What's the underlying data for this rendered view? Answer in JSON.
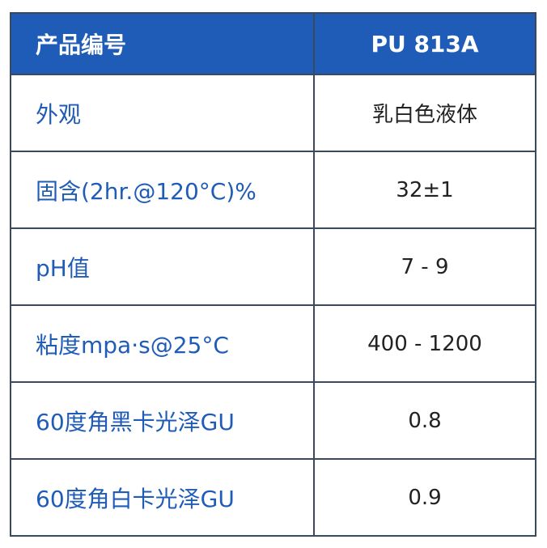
{
  "table": {
    "header": [
      "产品编号",
      "PU 813A"
    ],
    "rows": [
      [
        "外观",
        "乳白色液体"
      ],
      [
        "固含(2hr.@120°C)%",
        "32±1"
      ],
      [
        "pH值",
        "7 - 9"
      ],
      [
        "粘度mpa·s@25°C",
        "400 - 1200"
      ],
      [
        "60度角黑卡光泽GU",
        "0.8"
      ],
      [
        "60度角白卡光泽GU",
        "0.9"
      ]
    ]
  }
}
